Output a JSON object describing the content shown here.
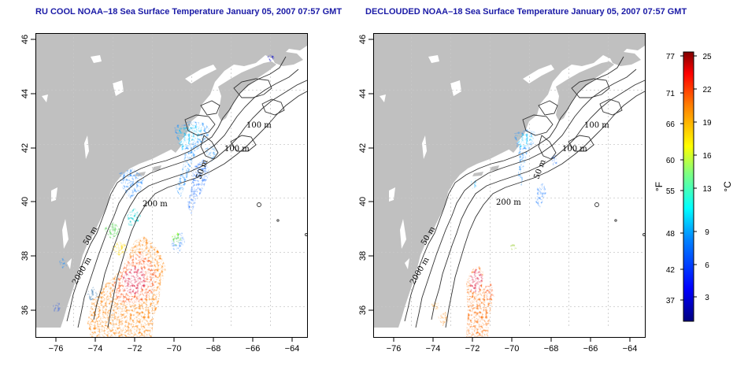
{
  "left_panel": {
    "title": "RU COOL NOAA–18 Sea Surface Temperature January 05, 2007 07:57 GMT",
    "contour_labels": [
      "100 m",
      "100 m",
      "50 m",
      "200 m",
      "50 m",
      "2000 m"
    ]
  },
  "right_panel": {
    "title": "DECLOUDED NOAA–18 Sea Surface Temperature January 05, 2007 07:57 GMT",
    "contour_labels": [
      "100 m",
      "100 m",
      "50 m",
      "200 m",
      "50 m",
      "2000 m"
    ]
  },
  "axes": {
    "x_ticks": [
      "−76",
      "−74",
      "−72",
      "−70",
      "−68",
      "−66",
      "−64"
    ],
    "y_ticks": [
      "36",
      "38",
      "40",
      "42",
      "44",
      "46"
    ]
  },
  "colorbar": {
    "fahrenheit_ticks": [
      "77",
      "71",
      "66",
      "60",
      "55",
      "48",
      "42",
      "37"
    ],
    "celsius_ticks": [
      "25",
      "22",
      "19",
      "16",
      "13",
      "9",
      "6",
      "3"
    ],
    "fahrenheit_unit": "°F",
    "celsius_unit": "°C",
    "colors": [
      "#000080",
      "#0000ff",
      "#0080ff",
      "#00ffff",
      "#80ff80",
      "#ffff00",
      "#ff8000",
      "#ff0000",
      "#800000"
    ]
  },
  "colors": {
    "land": "#c0c0c0",
    "ocean": "#ffffff",
    "title": "#1a1aa6"
  }
}
